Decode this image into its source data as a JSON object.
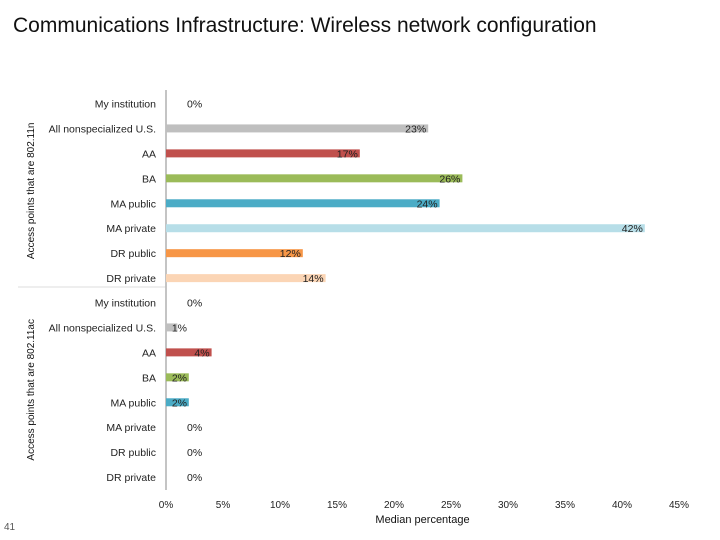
{
  "page": {
    "title": "Communications Infrastructure: Wireless network configuration",
    "page_number": "41"
  },
  "chart_data": {
    "type": "bar",
    "orientation": "horizontal",
    "xlabel": "Median percentage",
    "xlim": [
      0,
      45
    ],
    "xticks": [
      0,
      5,
      10,
      15,
      20,
      25,
      30,
      35,
      40,
      45
    ],
    "tick_suffix": "%",
    "grid": false,
    "categories": [
      "My institution",
      "All nonspecialized U.S.",
      "AA",
      "BA",
      "MA public",
      "MA private",
      "DR public",
      "DR private"
    ],
    "category_colors": [
      "#c0504d",
      "#bfbfbf",
      "#c0504d",
      "#9bbb59",
      "#4bacc6",
      "#b7dee8",
      "#f79646",
      "#fbd5b5"
    ],
    "groups": [
      {
        "name": "Access points that are 802.11n",
        "values": [
          0,
          23,
          17,
          26,
          24,
          42,
          12,
          14
        ],
        "labels": [
          "0%",
          "23%",
          "17%",
          "26%",
          "24%",
          "42%",
          "12%",
          "14%"
        ]
      },
      {
        "name": "Access points that are 802.11ac",
        "values": [
          0,
          1,
          4,
          2,
          2,
          0,
          0,
          0
        ],
        "labels": [
          "0%",
          "1%",
          "4%",
          "2%",
          "2%",
          "0%",
          "0%",
          "0%"
        ]
      }
    ]
  }
}
